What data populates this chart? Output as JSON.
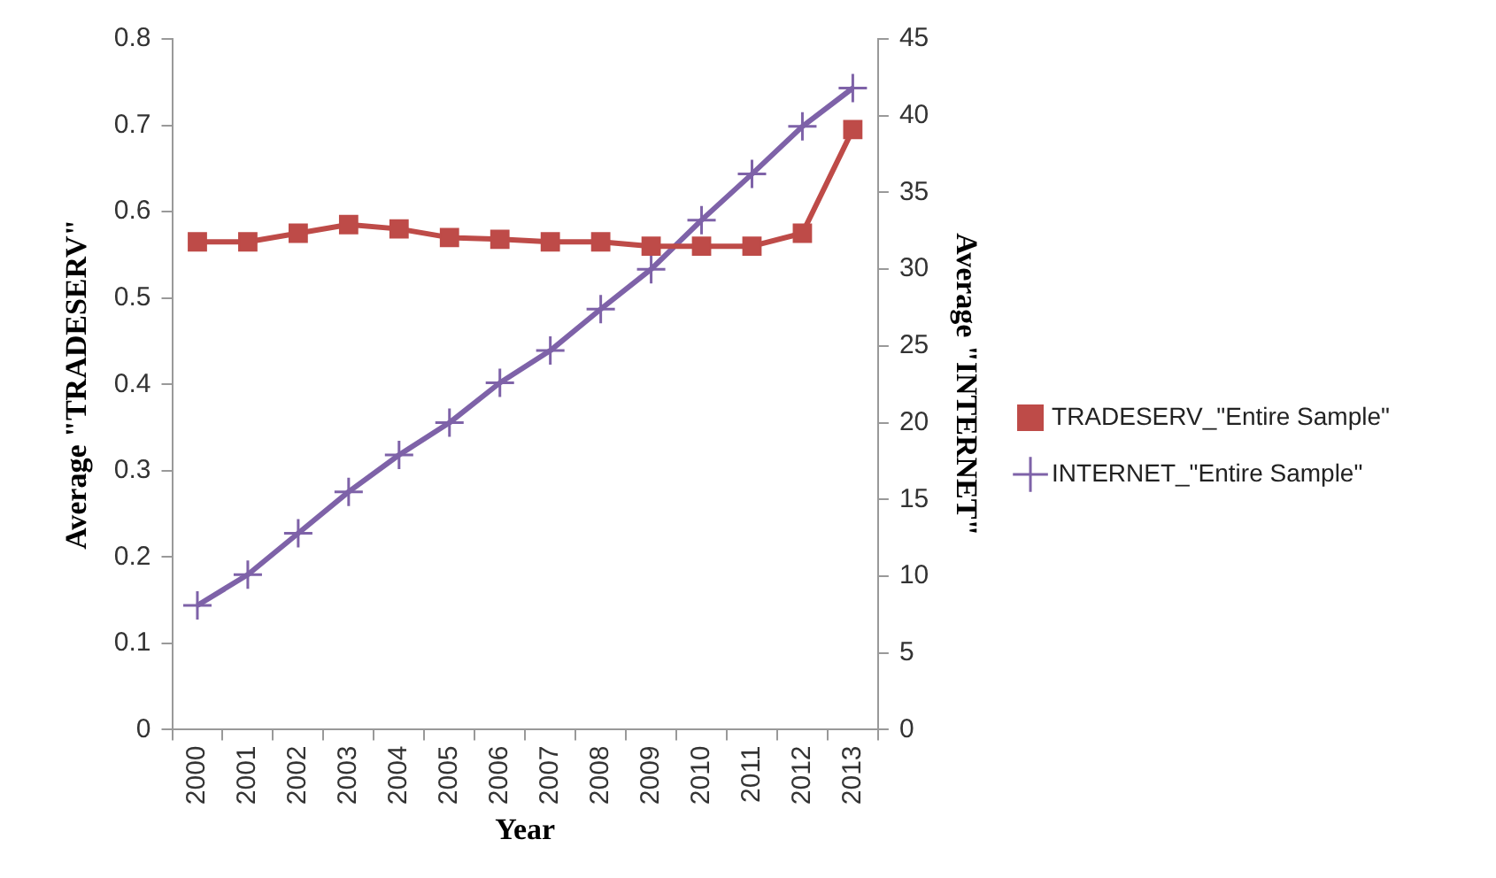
{
  "chart_data": {
    "type": "line",
    "xlabel": "Year",
    "ylabel": "Average \"TRADESERV\"",
    "y2label": "Average \"INTERNET\"",
    "categories": [
      "2000",
      "2001",
      "2002",
      "2003",
      "2004",
      "2005",
      "2006",
      "2007",
      "2008",
      "2009",
      "2010",
      "2011",
      "2012",
      "2013"
    ],
    "series": [
      {
        "name": "TRADESERV_\"Entire Sample\"",
        "color": "#be4b48",
        "marker": "square",
        "values": [
          0.565,
          0.565,
          0.575,
          0.585,
          0.58,
          0.57,
          0.568,
          0.565,
          0.565,
          0.56,
          0.56,
          0.56,
          0.575,
          0.695
        ]
      },
      {
        "name": "INTERNET_\"Entire Sample\"",
        "color": "#7e62a8",
        "marker": "cross",
        "axis": "y2",
        "values": [
          8.1,
          10.1,
          12.8,
          15.5,
          17.9,
          20.0,
          22.6,
          24.7,
          27.4,
          30.0,
          33.2,
          36.2,
          39.3,
          41.8
        ]
      }
    ],
    "ylim": [
      0,
      0.8
    ],
    "yticks": [
      0,
      0.1,
      0.2,
      0.3,
      0.4,
      0.5,
      0.6,
      0.7,
      0.8
    ],
    "y2lim": [
      0,
      45
    ],
    "y2ticks": [
      0,
      5,
      10,
      15,
      20,
      25,
      30,
      35,
      40,
      45
    ],
    "grid": false,
    "legend": "right"
  }
}
